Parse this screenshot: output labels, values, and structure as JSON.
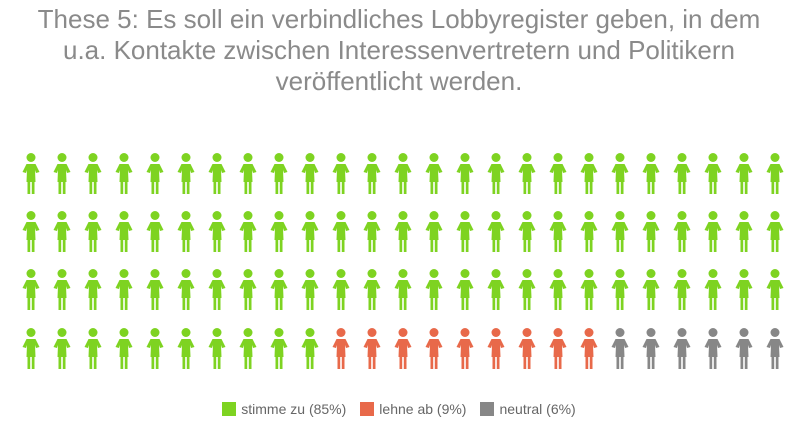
{
  "chart_data": {
    "type": "pictogram",
    "title_lines": [
      "These 5: Es soll ein verbindliches Lobbyregister geben, in dem",
      "u.a. Kontakte zwischen Interessenvertretern und Politikern",
      "veröffentlicht werden."
    ],
    "total_icons": 100,
    "series": [
      {
        "name": "stimme zu (85%)",
        "value": 85,
        "color": "#7ed321"
      },
      {
        "name": "lehne ab (9%)",
        "value": 9,
        "color": "#e8694a"
      },
      {
        "name": "neutral (6%)",
        "value": 6,
        "color": "#878787"
      }
    ],
    "legend_position": "bottom-center"
  }
}
